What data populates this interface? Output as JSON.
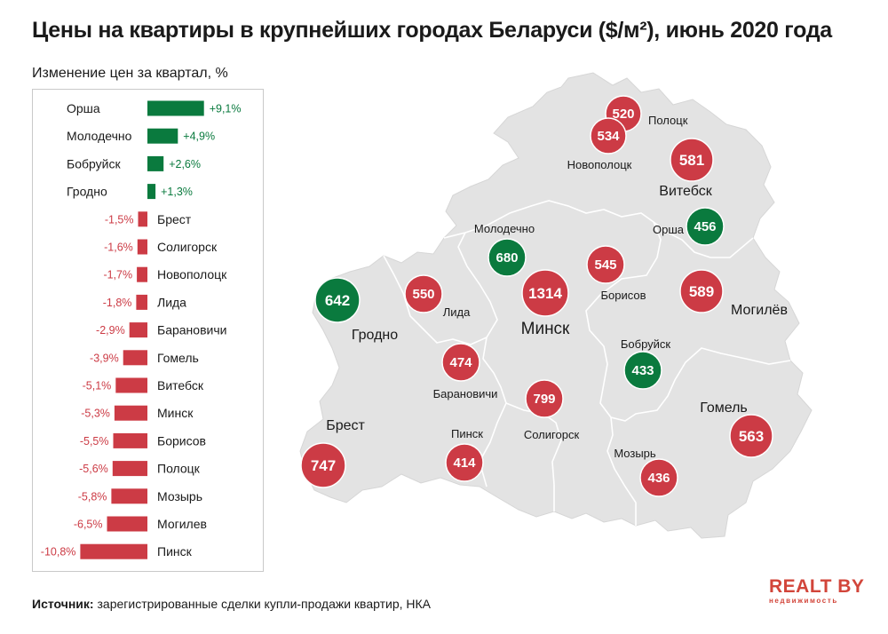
{
  "title": "Цены на квартиры в крупнейших городах Беларуси ($/м²), июнь 2020 года",
  "subtitle": "Изменение цен за квартал, %",
  "source_label": "Источник:",
  "source_text": "зарегистрированные сделки купли-продажи квартир, НКА",
  "logo": {
    "main": "REALT BY",
    "sub": "недвижимость"
  },
  "colors": {
    "positive": "#0a7a3e",
    "negative": "#cc3b45",
    "map_fill": "#e3e3e3",
    "map_border": "#ffffff"
  },
  "chart_data": [
    {
      "type": "bar",
      "orientation": "horizontal",
      "title": "Изменение цен за квартал, %",
      "categories": [
        "Орша",
        "Молодечно",
        "Бобруйск",
        "Гродно",
        "Брест",
        "Солигорск",
        "Новополоцк",
        "Лида",
        "Барановичи",
        "Гомель",
        "Витебск",
        "Минск",
        "Борисов",
        "Полоцк",
        "Мозырь",
        "Могилев",
        "Пинск"
      ],
      "values": [
        9.1,
        4.9,
        2.6,
        1.3,
        -1.5,
        -1.6,
        -1.7,
        -1.8,
        -2.9,
        -3.9,
        -5.1,
        -5.3,
        -5.5,
        -5.6,
        -5.8,
        -6.5,
        -10.8
      ],
      "value_labels": [
        "+9,1%",
        "+4,9%",
        "+2,6%",
        "+1,3%",
        "-1,5%",
        "-1,6%",
        "-1,7%",
        "-1,8%",
        "-2,9%",
        "-3,9%",
        "-5,1%",
        "-5,3%",
        "-5,5%",
        "-5,6%",
        "-5,8%",
        "-6,5%",
        "-10,8%"
      ]
    },
    {
      "type": "map",
      "title": "Цены на квартиры в крупнейших городах Беларуси ($/м²), июнь 2020 года",
      "unit": "$/м²",
      "cities": [
        {
          "name": "Полоцк",
          "value": 520,
          "change": "negative"
        },
        {
          "name": "Новополоцк",
          "value": 534,
          "change": "negative"
        },
        {
          "name": "Витебск",
          "value": 581,
          "change": "negative"
        },
        {
          "name": "Орша",
          "value": 456,
          "change": "positive"
        },
        {
          "name": "Молодечно",
          "value": 680,
          "change": "positive"
        },
        {
          "name": "Гродно",
          "value": 642,
          "change": "positive"
        },
        {
          "name": "Лида",
          "value": 550,
          "change": "negative"
        },
        {
          "name": "Минск",
          "value": 1314,
          "change": "negative"
        },
        {
          "name": "Борисов",
          "value": 545,
          "change": "negative"
        },
        {
          "name": "Могилёв",
          "value": 589,
          "change": "negative"
        },
        {
          "name": "Бобруйск",
          "value": 433,
          "change": "positive"
        },
        {
          "name": "Барановичи",
          "value": 474,
          "change": "negative"
        },
        {
          "name": "Солигорск",
          "value": 799,
          "change": "negative"
        },
        {
          "name": "Брест",
          "value": 747,
          "change": "negative"
        },
        {
          "name": "Пинск",
          "value": 414,
          "change": "negative"
        },
        {
          "name": "Мозырь",
          "value": 436,
          "change": "negative"
        },
        {
          "name": "Гомель",
          "value": 563,
          "change": "negative"
        }
      ]
    }
  ]
}
